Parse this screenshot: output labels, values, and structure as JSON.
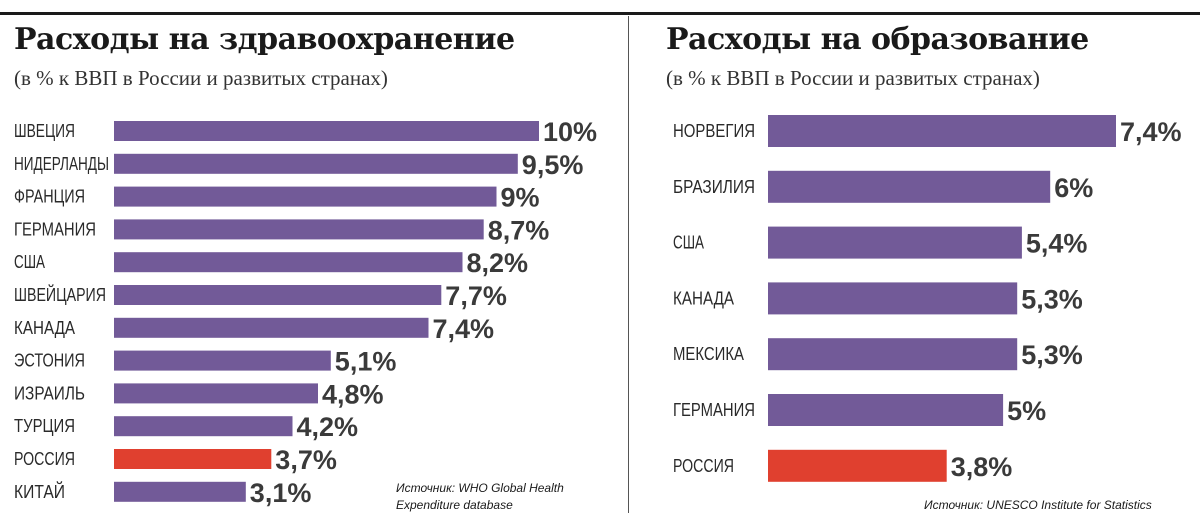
{
  "colors": {
    "bar": "#725a98",
    "highlight": "#e0402f"
  },
  "health": {
    "title": "Расходы на здравоохранение",
    "subtitle": "(в % к ВВП в России и развитых странах)",
    "source": "Источник: WHO Global Health Expenditure database",
    "source_line1": "Источник: WHO Global Health",
    "source_line2": "Expenditure database"
  },
  "education": {
    "title": "Расходы на образование",
    "subtitle": "(в % к ВВП в России и развитых странах)",
    "source": "Источник: UNESCO Institute for Statistics"
  },
  "chart_data": [
    {
      "type": "bar",
      "orientation": "horizontal",
      "title": "Расходы на здравоохранение",
      "subtitle": "(в % к ВВП в России и развитых странах)",
      "categories": [
        "ШВЕЦИЯ",
        "НИДЕРЛАНДЫ",
        "ФРАНЦИЯ",
        "ГЕРМАНИЯ",
        "США",
        "ШВЕЙЦАРИЯ",
        "КАНАДА",
        "ЭСТОНИЯ",
        "ИЗРАИЛЬ",
        "ТУРЦИЯ",
        "РОССИЯ",
        "КИТАЙ"
      ],
      "values": [
        10,
        9.5,
        9,
        8.7,
        8.2,
        7.7,
        7.4,
        5.1,
        4.8,
        4.2,
        3.7,
        3.1
      ],
      "value_labels": [
        "10%",
        "9,5%",
        "9%",
        "8,7%",
        "8,2%",
        "7,7%",
        "7,4%",
        "5,1%",
        "4,8%",
        "4,2%",
        "3,7%",
        "3,1%"
      ],
      "highlight": "РОССИЯ",
      "xlabel": "",
      "ylabel": "",
      "xlim": [
        0,
        10
      ],
      "grid": false
    },
    {
      "type": "bar",
      "orientation": "horizontal",
      "title": "Расходы на образование",
      "subtitle": "(в % к ВВП в России и развитых странах)",
      "categories": [
        "НОРВЕГИЯ",
        "БРАЗИЛИЯ",
        "США",
        "КАНАДА",
        "МЕКСИКА",
        "ГЕРМАНИЯ",
        "РОССИЯ"
      ],
      "values": [
        7.4,
        6,
        5.4,
        5.3,
        5.3,
        5,
        3.8
      ],
      "value_labels": [
        "7,4%",
        "6%",
        "5,4%",
        "5,3%",
        "5,3%",
        "5%",
        "3,8%"
      ],
      "highlight": "РОССИЯ",
      "xlabel": "",
      "ylabel": "",
      "xlim": [
        0,
        7.4
      ],
      "grid": false
    }
  ]
}
